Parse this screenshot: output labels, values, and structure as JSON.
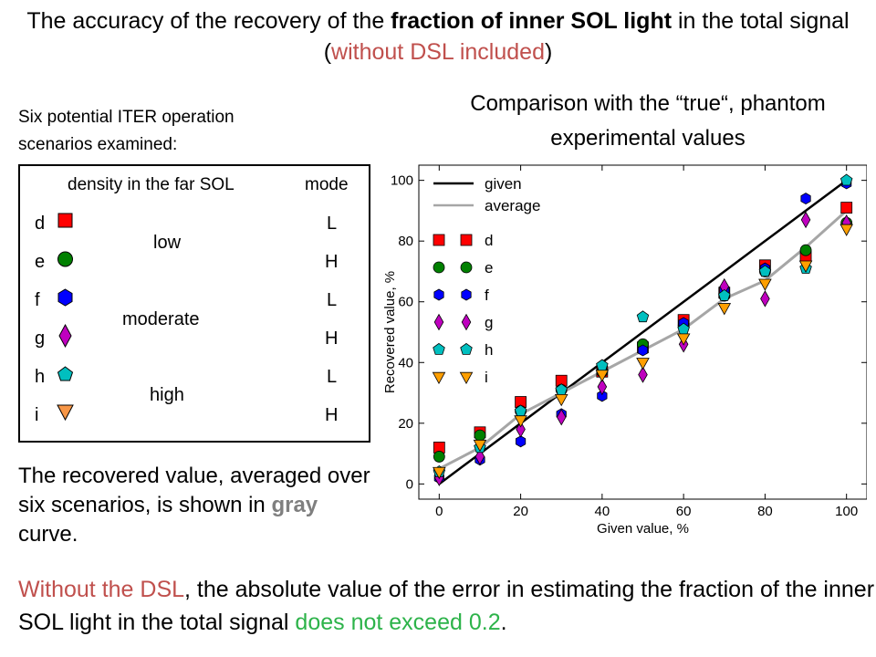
{
  "title": {
    "part1": "The accuracy of the recovery of the ",
    "bold": "fraction of inner SOL light",
    "part2": " in the total signal (",
    "red": "without DSL included",
    "part3": ")"
  },
  "scenarios_intro": "Six potential ITER operation scenarios examined:",
  "comparison_text": "Comparison with the “true“, phantom experimental values",
  "legend_table": {
    "col_density": "density in the far SOL",
    "col_mode": "mode",
    "rows": [
      {
        "id": "d",
        "mode": "L",
        "marker": "square",
        "color": "#ff0000"
      },
      {
        "id": "e",
        "mode": "H",
        "marker": "circle",
        "color": "#008000"
      },
      {
        "id": "f",
        "mode": "L",
        "marker": "hexagon",
        "color": "#0000ff"
      },
      {
        "id": "g",
        "mode": "H",
        "marker": "diamond",
        "color": "#bf00bf"
      },
      {
        "id": "h",
        "mode": "L",
        "marker": "pentagon",
        "color": "#00bfbf"
      },
      {
        "id": "i",
        "mode": "H",
        "marker": "triangle",
        "color": "#ff9f00"
      }
    ],
    "density_groups": [
      "low",
      "moderate",
      "high"
    ]
  },
  "recovered_text": {
    "part1": "The recovered value, averaged over six scenarios, is shown in ",
    "gray": "gray",
    "part2": " curve."
  },
  "conclusion": {
    "red": "Without the DSL",
    "part1": ", the absolute value of the error in estimating the fraction of the inner SOL light in the total signal ",
    "green": "does not exceed 0.2",
    "part2": "."
  },
  "chart_data": {
    "type": "scatter",
    "xlabel": "Given value, %",
    "ylabel": "Recovered value, %",
    "xlim": [
      -5,
      105
    ],
    "ylim": [
      -5,
      105
    ],
    "xticks": [
      0,
      20,
      40,
      60,
      80,
      100
    ],
    "yticks": [
      0,
      20,
      40,
      60,
      80,
      100
    ],
    "grid": false,
    "legend_position": "top-left",
    "x": [
      0,
      10,
      20,
      30,
      40,
      50,
      60,
      70,
      80,
      90,
      100
    ],
    "lines": [
      {
        "name": "given",
        "color": "#000000",
        "values": [
          0,
          10,
          20,
          30,
          40,
          50,
          60,
          70,
          80,
          90,
          100
        ]
      },
      {
        "name": "average",
        "color": "#a6a6a6",
        "values": [
          5,
          12,
          23,
          30,
          37,
          44,
          51,
          61,
          67,
          78,
          90
        ]
      }
    ],
    "series": [
      {
        "name": "d",
        "marker": "square",
        "color": "#ff0000",
        "values": [
          12,
          17,
          27,
          34,
          37,
          45,
          54,
          63,
          72,
          75,
          91
        ]
      },
      {
        "name": "e",
        "marker": "circle",
        "color": "#008000",
        "values": [
          9,
          16,
          24,
          31,
          37,
          46,
          52,
          62,
          70,
          77,
          86
        ]
      },
      {
        "name": "f",
        "marker": "hexagon",
        "color": "#0000ff",
        "values": [
          2,
          8,
          14,
          23,
          29,
          44,
          53,
          64,
          71,
          94,
          99
        ]
      },
      {
        "name": "g",
        "marker": "diamond",
        "color": "#bf00bf",
        "values": [
          2,
          9,
          18,
          22,
          32,
          36,
          46,
          65,
          61,
          87,
          86
        ]
      },
      {
        "name": "h",
        "marker": "pentagon",
        "color": "#00bfbf",
        "values": [
          4,
          12,
          24,
          31,
          39,
          55,
          51,
          62,
          70,
          71,
          100
        ]
      },
      {
        "name": "i",
        "marker": "triangle",
        "color": "#ff9f00",
        "values": [
          4,
          13,
          21,
          28,
          36,
          40,
          48,
          58,
          66,
          72,
          84
        ]
      }
    ]
  }
}
